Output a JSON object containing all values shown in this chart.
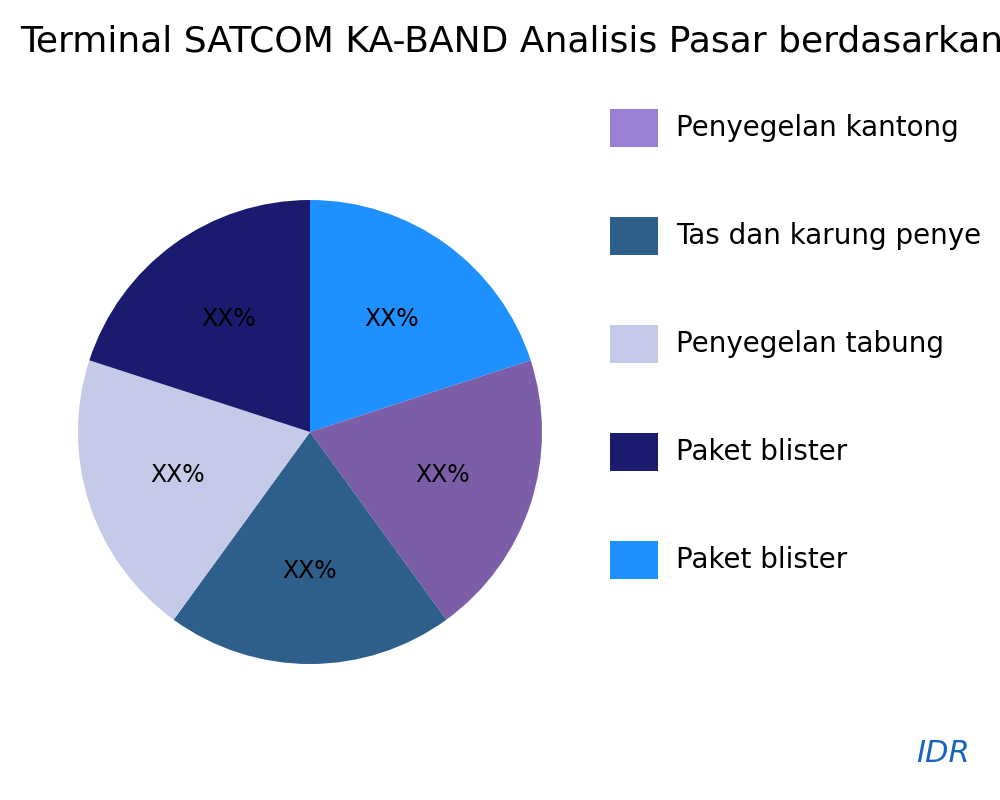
{
  "title": "Terminal SATCOM KA-BAND Analisis Pasar berdasarkan",
  "slices": [
    20,
    20,
    20,
    20,
    20
  ],
  "labels": [
    "XX%",
    "XX%",
    "XX%",
    "XX%",
    "XX%"
  ],
  "colors": [
    "#1E90FF",
    "#7B5EA7",
    "#2E5F8A",
    "#C5CAE9",
    "#1A1A6E"
  ],
  "legend_labels": [
    "Penyegelan kantong",
    "Tas dan karung penye",
    "Penyegelan tabung",
    "Paket blister",
    "Paket blister"
  ],
  "legend_colors": [
    "#9B7FD4",
    "#2E5F8A",
    "#C5CAE9",
    "#1A1A6E",
    "#1E90FF"
  ],
  "watermark": "IDR",
  "watermark_color": "#1565C0",
  "background_color": "#FFFFFF",
  "title_fontsize": 26,
  "label_fontsize": 17,
  "legend_fontsize": 20,
  "startangle": 90
}
